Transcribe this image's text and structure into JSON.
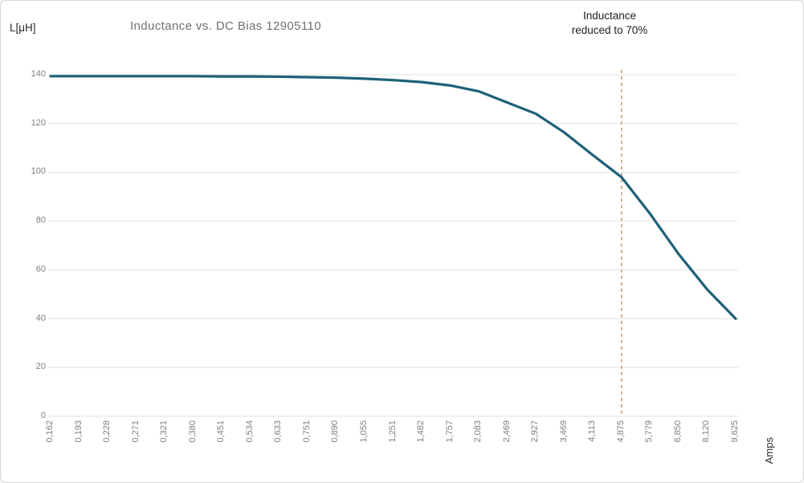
{
  "chart_data": {
    "type": "line",
    "title": "Inductance vs. DC Bias 12905110",
    "ylabel": "L[μH]",
    "xlabel": "Amps",
    "ylim": [
      0,
      140
    ],
    "yticks": [
      0,
      20,
      40,
      60,
      80,
      100,
      120,
      140
    ],
    "grid": "horizontal",
    "legend_position": "none",
    "categories": [
      "0,162",
      "0,193",
      "0,228",
      "0,271",
      "0,321",
      "0,380",
      "0,451",
      "0,534",
      "0,633",
      "0,751",
      "0,890",
      "1,055",
      "1,251",
      "1,482",
      "1,757",
      "2,083",
      "2,469",
      "2,927",
      "3,469",
      "4,113",
      "4,875",
      "5,779",
      "6,850",
      "8,120",
      "9,625"
    ],
    "series": [
      {
        "name": "Inductance",
        "values": [
          139.4,
          139.4,
          139.4,
          139.4,
          139.4,
          139.4,
          139.3,
          139.3,
          139.2,
          139.0,
          138.8,
          138.4,
          137.8,
          137.0,
          135.6,
          133.2,
          128.6,
          124.0,
          116.3,
          107.0,
          98.0,
          83.0,
          66.5,
          52.0,
          40.0
        ]
      }
    ],
    "annotation": {
      "line1": "Inductance",
      "line2": "reduced to 70%",
      "category": "4,875",
      "category_index": 20
    },
    "colors": {
      "line": "#1e6079",
      "gridline": "#e2e2e2",
      "threshold_line": "#cda175",
      "title_text": "#6f6f6f",
      "tick_text": "#7f7f7f",
      "label_text": "#262626",
      "border": "#d7d7d7",
      "background": "#ffffff"
    }
  }
}
